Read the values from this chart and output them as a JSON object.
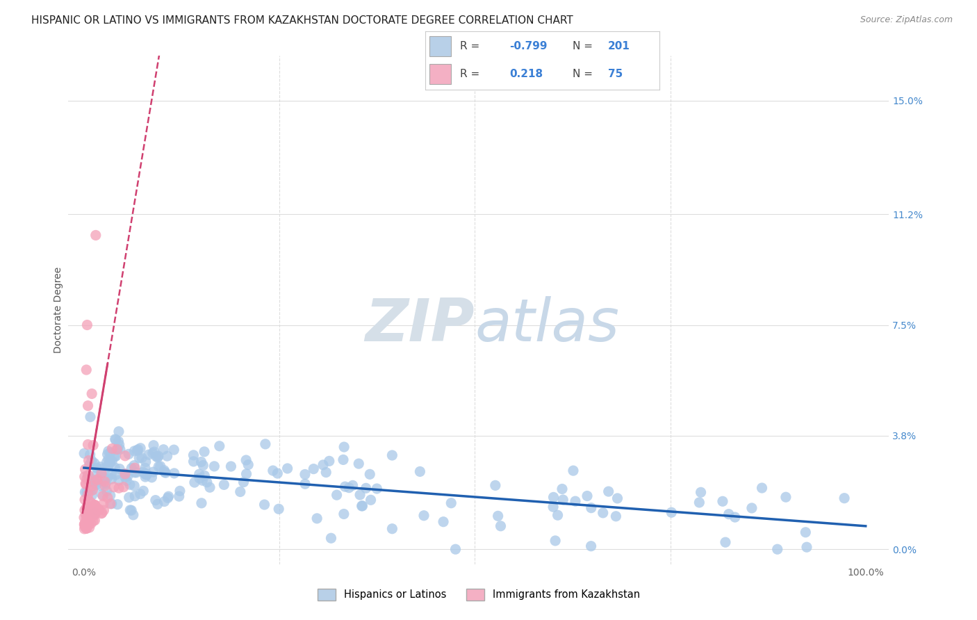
{
  "title": "HISPANIC OR LATINO VS IMMIGRANTS FROM KAZAKHSTAN DOCTORATE DEGREE CORRELATION CHART",
  "source": "Source: ZipAtlas.com",
  "ylabel": "Doctorate Degree",
  "y_tick_labels": [
    "0.0%",
    "3.8%",
    "7.5%",
    "11.2%",
    "15.0%"
  ],
  "y_tick_values": [
    0.0,
    3.8,
    7.5,
    11.2,
    15.0
  ],
  "x_tick_labels": [
    "0.0%",
    "100.0%"
  ],
  "x_tick_values": [
    0.0,
    100.0
  ],
  "x_lim": [
    -2.0,
    103.0
  ],
  "y_lim": [
    -0.5,
    16.5
  ],
  "blue_R": -0.799,
  "blue_N": 201,
  "pink_R": 0.218,
  "pink_N": 75,
  "blue_color": "#a8c8e8",
  "pink_color": "#f4a0b8",
  "blue_line_color": "#2060b0",
  "pink_line_color": "#d04070",
  "watermark_zip": "ZIP",
  "watermark_atlas": "atlas",
  "watermark_color": "#d5dfe8",
  "background_color": "#ffffff",
  "grid_color": "#dddddd",
  "title_fontsize": 11,
  "axis_label_fontsize": 10,
  "tick_fontsize": 10,
  "source_fontsize": 9
}
